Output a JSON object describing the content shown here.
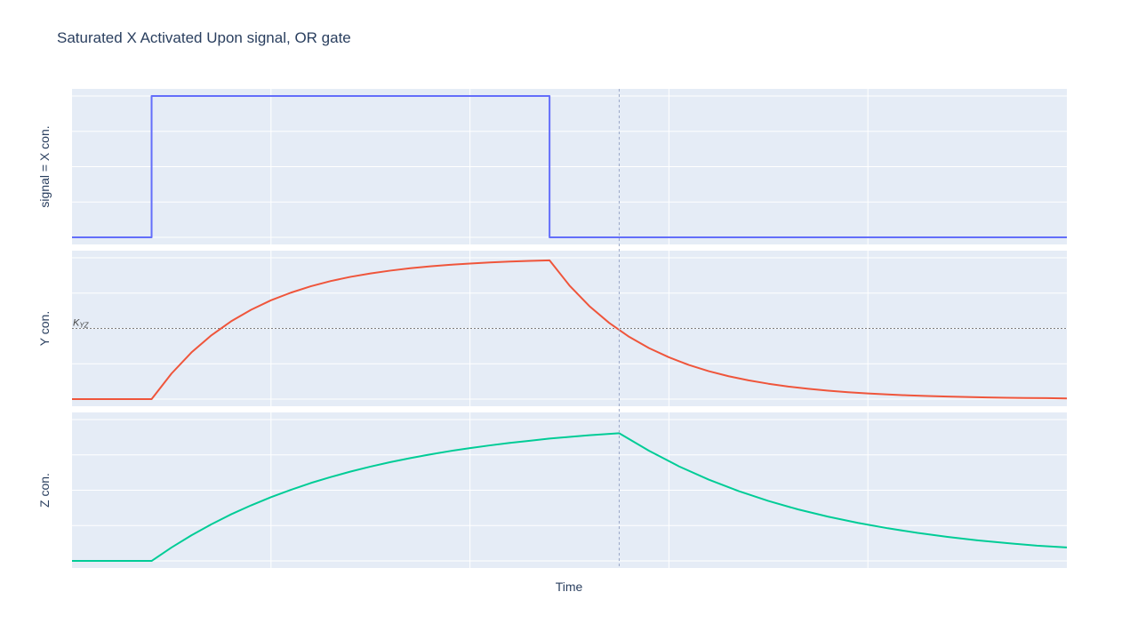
{
  "title": "Saturated X Activated Upon signal, OR gate",
  "chart_data": {
    "type": "line",
    "title": "Saturated X Activated Upon signal, OR gate",
    "xlabel": "Time",
    "shared_xlim": [
      0,
      10
    ],
    "vertical_marker_x": 5.5,
    "panels": [
      {
        "ylabel": "signal = X con.",
        "ylim": [
          -0.05,
          1.05
        ],
        "series": [
          {
            "color": "#636efa",
            "shape": "step",
            "x": [
              0,
              0.8,
              0.8,
              4.8,
              4.8,
              10
            ],
            "y": [
              0,
              0,
              1,
              1,
              0,
              0
            ]
          }
        ]
      },
      {
        "ylabel": "Y con.",
        "ylim": [
          -0.05,
          1.05
        ],
        "threshold": {
          "label": "K_YZ",
          "value": 0.5
        },
        "series": [
          {
            "color": "#ef553b",
            "x": [
              0,
              0.8,
              1.0,
              1.2,
              1.4,
              1.6,
              1.8,
              2.0,
              2.2,
              2.4,
              2.6,
              2.8,
              3.0,
              3.2,
              3.4,
              3.6,
              3.8,
              4.0,
              4.2,
              4.4,
              4.6,
              4.8,
              5.0,
              5.2,
              5.4,
              5.6,
              5.8,
              6.0,
              6.2,
              6.4,
              6.6,
              6.8,
              7.0,
              7.2,
              7.4,
              7.6,
              7.8,
              8.0,
              8.2,
              8.4,
              8.6,
              8.8,
              9.0,
              9.2,
              9.4,
              9.6,
              9.8,
              10.0
            ],
            "y": [
              0,
              0,
              0.181,
              0.33,
              0.451,
              0.551,
              0.632,
              0.699,
              0.753,
              0.798,
              0.835,
              0.865,
              0.889,
              0.909,
              0.926,
              0.939,
              0.95,
              0.959,
              0.967,
              0.973,
              0.978,
              0.982,
              0.804,
              0.658,
              0.539,
              0.441,
              0.361,
              0.296,
              0.242,
              0.198,
              0.162,
              0.133,
              0.109,
              0.089,
              0.073,
              0.06,
              0.049,
              0.04,
              0.033,
              0.027,
              0.022,
              0.018,
              0.015,
              0.012,
              0.01,
              0.008,
              0.007,
              0.005
            ]
          }
        ]
      },
      {
        "ylabel": "Z con.",
        "ylim": [
          -0.05,
          1.05
        ],
        "series": [
          {
            "color": "#00cc96",
            "x": [
              0,
              0.8,
              1.0,
              1.2,
              1.4,
              1.6,
              1.8,
              2.0,
              2.2,
              2.4,
              2.6,
              2.8,
              3.0,
              3.2,
              3.4,
              3.6,
              3.8,
              4.0,
              4.2,
              4.4,
              4.6,
              4.8,
              5.0,
              5.2,
              5.5,
              5.8,
              6.1,
              6.4,
              6.7,
              7.0,
              7.3,
              7.6,
              7.9,
              8.2,
              8.5,
              8.8,
              9.1,
              9.4,
              9.7,
              10.0
            ],
            "y": [
              0,
              0,
              0.095,
              0.181,
              0.259,
              0.33,
              0.393,
              0.451,
              0.503,
              0.551,
              0.593,
              0.632,
              0.667,
              0.699,
              0.727,
              0.753,
              0.777,
              0.798,
              0.817,
              0.835,
              0.85,
              0.865,
              0.877,
              0.889,
              0.903,
              0.779,
              0.669,
              0.575,
              0.494,
              0.424,
              0.364,
              0.313,
              0.269,
              0.231,
              0.198,
              0.17,
              0.146,
              0.126,
              0.108,
              0.095
            ]
          }
        ]
      }
    ]
  }
}
